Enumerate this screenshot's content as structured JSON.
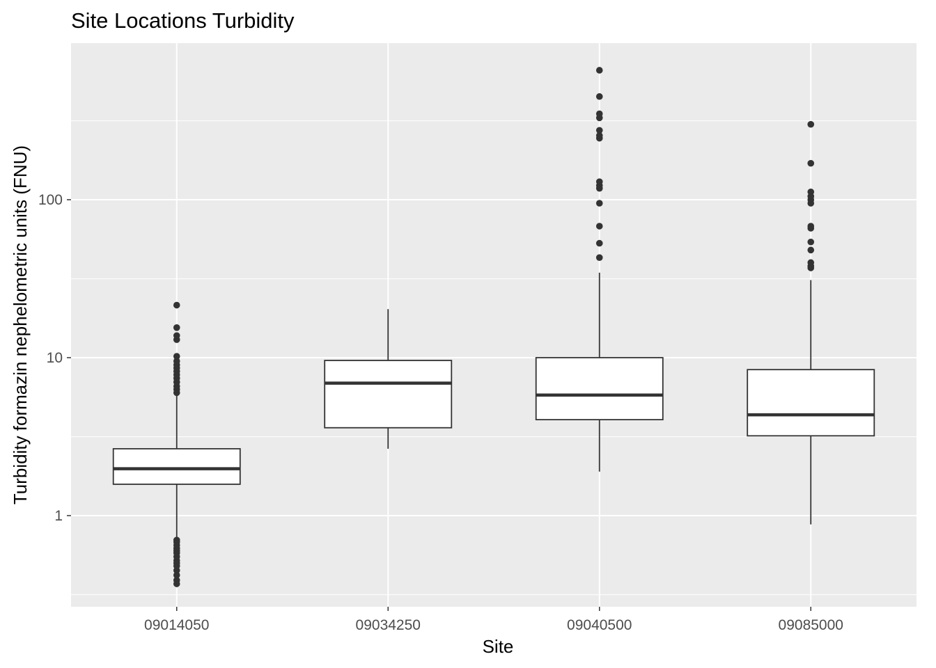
{
  "chart_data": {
    "type": "boxplot",
    "title": "Site Locations Turbidity",
    "xlabel": "Site",
    "ylabel": "Turbidity formazin nephelometric units (FNU)",
    "y_scale": "log10",
    "ylim": [
      0.3,
      900
    ],
    "y_ticks": [
      1,
      10,
      100
    ],
    "y_tick_labels": [
      "1",
      "10",
      "100"
    ],
    "y_minor_ticks": [
      0.316,
      3.16,
      31.6,
      316
    ],
    "categories": [
      "09014050",
      "09034250",
      "09040500",
      "09085000"
    ],
    "boxes": [
      {
        "site": "09014050",
        "lower_whisker": 0.72,
        "q1": 1.58,
        "median": 1.98,
        "q3": 2.65,
        "upper_whisker": 5.8,
        "outliers": [
          0.37,
          0.39,
          0.42,
          0.45,
          0.48,
          0.5,
          0.52,
          0.55,
          0.58,
          0.6,
          0.62,
          0.65,
          0.68,
          0.7,
          6.0,
          6.3,
          6.6,
          7.0,
          7.4,
          7.8,
          8.2,
          8.6,
          9.0,
          9.5,
          10.2,
          13.0,
          13.8,
          15.5,
          21.5
        ]
      },
      {
        "site": "09034250",
        "lower_whisker": 2.65,
        "q1": 3.6,
        "median": 6.9,
        "q3": 9.6,
        "upper_whisker": 20.3,
        "outliers": []
      },
      {
        "site": "09040500",
        "lower_whisker": 1.9,
        "q1": 4.05,
        "median": 5.8,
        "q3": 10.0,
        "upper_whisker": 34.5,
        "outliers": [
          43,
          53,
          68,
          95,
          118,
          123,
          130,
          245,
          255,
          275,
          330,
          350,
          450,
          660
        ]
      },
      {
        "site": "09085000",
        "lower_whisker": 0.88,
        "q1": 3.2,
        "median": 4.35,
        "q3": 8.4,
        "upper_whisker": 31,
        "outliers": [
          37,
          38,
          40,
          48,
          54,
          66,
          68,
          95,
          100,
          105,
          112,
          170,
          300
        ]
      }
    ],
    "grid": true
  }
}
